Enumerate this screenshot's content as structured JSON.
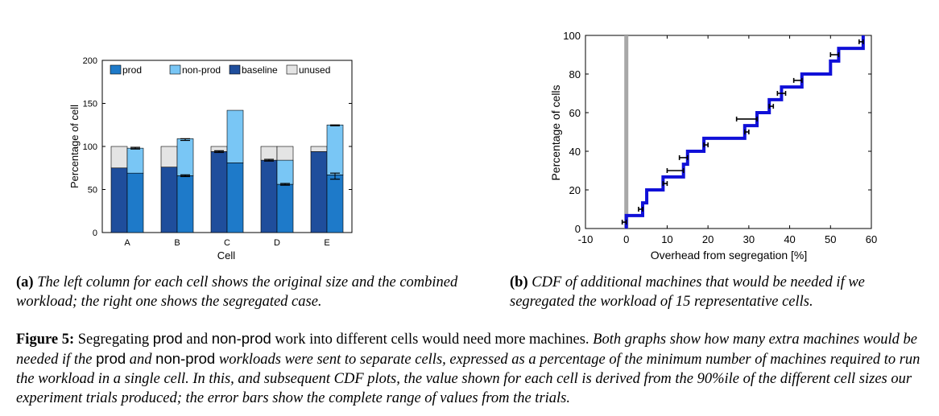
{
  "left_chart": {
    "chart_data": {
      "type": "bar",
      "categories": [
        "A",
        "B",
        "C",
        "D",
        "E"
      ],
      "xlabel": "Cell",
      "ylabel": "Percentage of cell",
      "ylim": [
        0,
        200
      ],
      "yticks": [
        0,
        50,
        100,
        150,
        200
      ],
      "legend": [
        "prod",
        "non-prod",
        "baseline",
        "unused"
      ],
      "legend_position": "top",
      "colors": {
        "prod": "#1e7ac9",
        "non_prod": "#79c6f5",
        "baseline": "#1f4e9c",
        "unused": "#e4e4e4"
      },
      "original": [
        {
          "cell": "A",
          "baseline": 75,
          "unused": 25
        },
        {
          "cell": "B",
          "baseline": 76,
          "unused": 24
        },
        {
          "cell": "C",
          "baseline": 94,
          "unused": 6
        },
        {
          "cell": "D",
          "baseline": 84,
          "unused": 16
        },
        {
          "cell": "E",
          "baseline": 94,
          "unused": 6
        }
      ],
      "segregated": [
        {
          "cell": "A",
          "prod": 69,
          "non_prod": 29,
          "unused": 0,
          "err": [
            97,
            99
          ]
        },
        {
          "cell": "B",
          "prod": 66,
          "non_prod": 43,
          "unused": 0,
          "err": [
            107,
            109
          ]
        },
        {
          "cell": "C",
          "prod": 81,
          "non_prod": 61,
          "unused": 0,
          "err": null
        },
        {
          "cell": "D",
          "prod": 56,
          "non_prod": 28,
          "unused": 16,
          "err": null
        },
        {
          "cell": "E",
          "prod": 67,
          "non_prod": 58,
          "unused": 0,
          "err": [
            124,
            125
          ]
        }
      ],
      "prod_err": {
        "B": [
          65,
          67
        ],
        "D": [
          55,
          57
        ],
        "E": [
          62,
          69
        ]
      },
      "baseline_err": {
        "C": [
          93,
          95
        ],
        "D": [
          83,
          85
        ]
      }
    }
  },
  "right_chart": {
    "chart_data": {
      "type": "line",
      "subtype": "cdf-step",
      "xlabel": "Overhead from segregation [%]",
      "ylabel": "Percentage of cells",
      "xlim": [
        -10,
        60
      ],
      "ylim": [
        0,
        100
      ],
      "xticks": [
        -10,
        0,
        10,
        20,
        30,
        40,
        50,
        60
      ],
      "yticks": [
        0,
        20,
        40,
        60,
        80,
        100
      ],
      "vertical_line_x": 0,
      "series": [
        {
          "x": [
            0,
            0,
            4,
            4,
            5,
            5,
            9,
            9,
            10,
            10,
            14,
            14,
            15,
            15,
            19,
            19,
            29,
            29,
            30,
            30,
            32,
            32,
            35,
            35,
            36,
            36,
            38,
            38,
            43,
            43,
            50,
            50,
            51,
            51,
            52,
            52,
            58,
            58
          ],
          "y": [
            0,
            6.7,
            6.7,
            13.3,
            13.3,
            20,
            20,
            26.7,
            26.7,
            26.7,
            26.7,
            33.3,
            33.3,
            40,
            40,
            46.7,
            46.7,
            53.3,
            53.3,
            53.3,
            53.3,
            60,
            60,
            66.7,
            66.7,
            66.7,
            66.7,
            73.3,
            73.3,
            80,
            80,
            86.7,
            86.7,
            86.7,
            86.7,
            93.3,
            93.3,
            100
          ]
        }
      ],
      "error_bars": [
        {
          "y": 3.3,
          "x": [
            -1,
            0
          ]
        },
        {
          "y": 10,
          "x": [
            3,
            4
          ]
        },
        {
          "y": 23.3,
          "x": [
            9,
            10
          ]
        },
        {
          "y": 30,
          "x": [
            10,
            14
          ]
        },
        {
          "y": 36.7,
          "x": [
            13,
            15
          ]
        },
        {
          "y": 43.3,
          "x": [
            19,
            20
          ]
        },
        {
          "y": 50,
          "x": [
            29,
            30
          ]
        },
        {
          "y": 56.7,
          "x": [
            27,
            32
          ]
        },
        {
          "y": 63.3,
          "x": [
            35,
            36
          ]
        },
        {
          "y": 70,
          "x": [
            37,
            39
          ]
        },
        {
          "y": 76.7,
          "x": [
            41,
            43
          ]
        },
        {
          "y": 90,
          "x": [
            50,
            52
          ]
        },
        {
          "y": 96.7,
          "x": [
            57,
            58
          ]
        }
      ]
    }
  },
  "caption_a": {
    "label": "(a)",
    "text": "The left column for each cell shows the original size and the combined workload; the right one shows the segregated case."
  },
  "caption_b": {
    "label": "(b)",
    "text": "CDF of additional machines that would be needed if we segregated the workload of 15 representative cells."
  },
  "figure_caption": {
    "label": "Figure 5:",
    "title_part1": "Segregating",
    "title_prod": "prod",
    "title_and": "and",
    "title_nonprod": "non-prod",
    "title_part2": "work into different cells would need more machines.",
    "body_part1": "Both graphs show how many extra machines would be needed if the",
    "body_prod": "prod",
    "body_and": "and",
    "body_nonprod": "non-prod",
    "body_part2": "workloads were sent to separate cells, expressed as a percentage of the minimum number of machines required to run the workload in a single cell. In this, and subsequent CDF plots, the value shown for each cell is derived from the 90%ile of the different cell sizes our experiment trials produced; the error bars show the complete range of values from the trials."
  }
}
